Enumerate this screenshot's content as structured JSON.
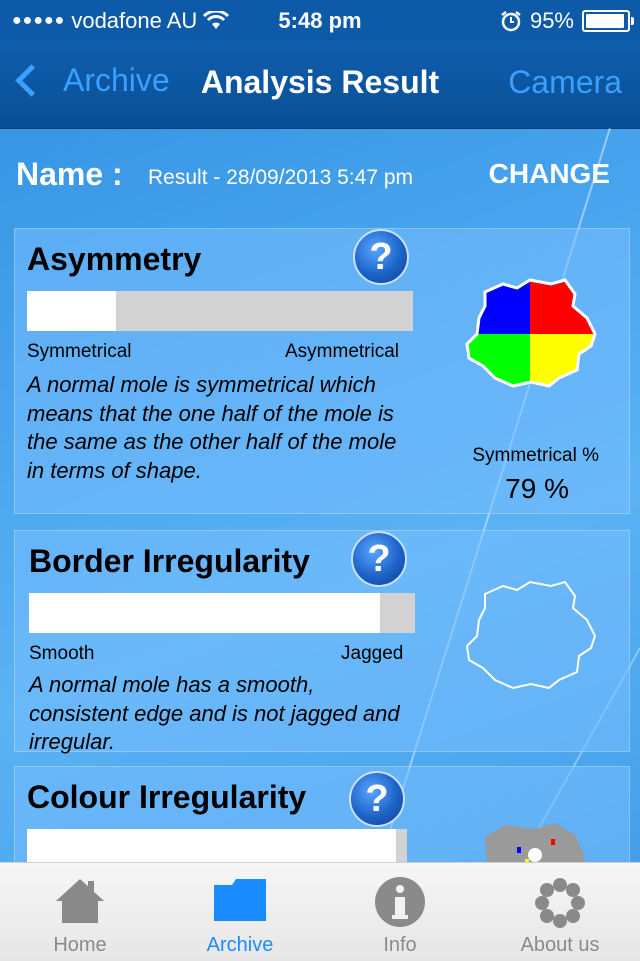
{
  "status_bar": {
    "carrier": "vodafone AU",
    "time": "5:48 pm",
    "battery": "95%",
    "battery_level": 0.95
  },
  "nav": {
    "back_label": "Archive",
    "title": "Analysis Result",
    "right_label": "Camera"
  },
  "name_row": {
    "label": "Name :",
    "value": "Result -  28/09/2013 5:47 pm",
    "change_label": "CHANGE"
  },
  "cards": {
    "asymmetry": {
      "title": "Asymmetry",
      "help": "?",
      "scale_left": "Symmetrical",
      "scale_right": "Asymmetrical",
      "level": 0.23,
      "description": "A normal mole is symmetrical which means that the one half of the mole is the same as the other half of the mole in terms of shape.",
      "symmetry_label": "Symmetrical %",
      "symmetry_value": "79  %"
    },
    "border": {
      "title": "Border Irregularity",
      "help": "?",
      "scale_left": "Smooth",
      "scale_right": "Jagged",
      "level": 0.91,
      "description": "A normal mole has a smooth, consistent edge and is not jagged and irregular."
    },
    "colour": {
      "title": "Colour Irregularity",
      "help": "?",
      "level": 0.97
    }
  },
  "tabs": [
    {
      "label": "Home",
      "icon": "home-icon"
    },
    {
      "label": "Archive",
      "icon": "folder-icon",
      "active": true
    },
    {
      "label": "Info",
      "icon": "info-icon"
    },
    {
      "label": "About us",
      "icon": "flower-icon"
    }
  ],
  "colors": {
    "accent": "#1a8cff",
    "nav_bg": "#0a4f96",
    "mole_blue": "#0000ff",
    "mole_red": "#ff0000",
    "mole_green": "#00ff00",
    "mole_yellow": "#ffff00"
  }
}
